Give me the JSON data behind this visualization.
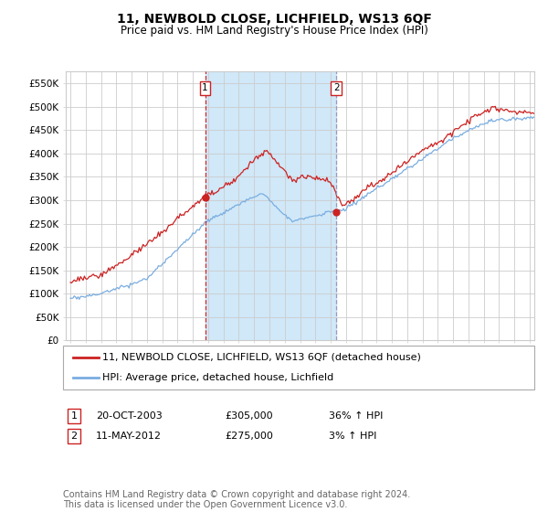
{
  "title": "11, NEWBOLD CLOSE, LICHFIELD, WS13 6QF",
  "subtitle": "Price paid vs. HM Land Registry's House Price Index (HPI)",
  "ylabel_ticks": [
    "£0",
    "£50K",
    "£100K",
    "£150K",
    "£200K",
    "£250K",
    "£300K",
    "£350K",
    "£400K",
    "£450K",
    "£500K",
    "£550K"
  ],
  "ytick_values": [
    0,
    50000,
    100000,
    150000,
    200000,
    250000,
    300000,
    350000,
    400000,
    450000,
    500000,
    550000
  ],
  "ylim": [
    0,
    575000
  ],
  "xlim_start": 1994.7,
  "xlim_end": 2025.3,
  "sale1_x": 2003.8,
  "sale1_y": 305000,
  "sale1_label": "1",
  "sale1_date": "20-OCT-2003",
  "sale1_price": "£305,000",
  "sale1_hpi": "36% ↑ HPI",
  "sale2_x": 2012.37,
  "sale2_y": 275000,
  "sale2_label": "2",
  "sale2_date": "11-MAY-2012",
  "sale2_price": "£275,000",
  "sale2_hpi": "3% ↑ HPI",
  "legend_line1": "11, NEWBOLD CLOSE, LICHFIELD, WS13 6QF (detached house)",
  "legend_line2": "HPI: Average price, detached house, Lichfield",
  "footnote": "Contains HM Land Registry data © Crown copyright and database right 2024.\nThis data is licensed under the Open Government Licence v3.0.",
  "line_color_red": "#cc2222",
  "line_color_blue": "#7aade0",
  "fill_color_blue": "#d0e8f8",
  "grid_color": "#cccccc",
  "background_color": "#ffffff",
  "plot_bg_color": "#ffffff",
  "vline1_color": "#dd2222",
  "vline2_color": "#9999bb",
  "marker_color_red": "#cc2222",
  "title_fontsize": 10,
  "subtitle_fontsize": 8.5,
  "tick_fontsize": 7.5,
  "legend_fontsize": 8,
  "footnote_fontsize": 7
}
